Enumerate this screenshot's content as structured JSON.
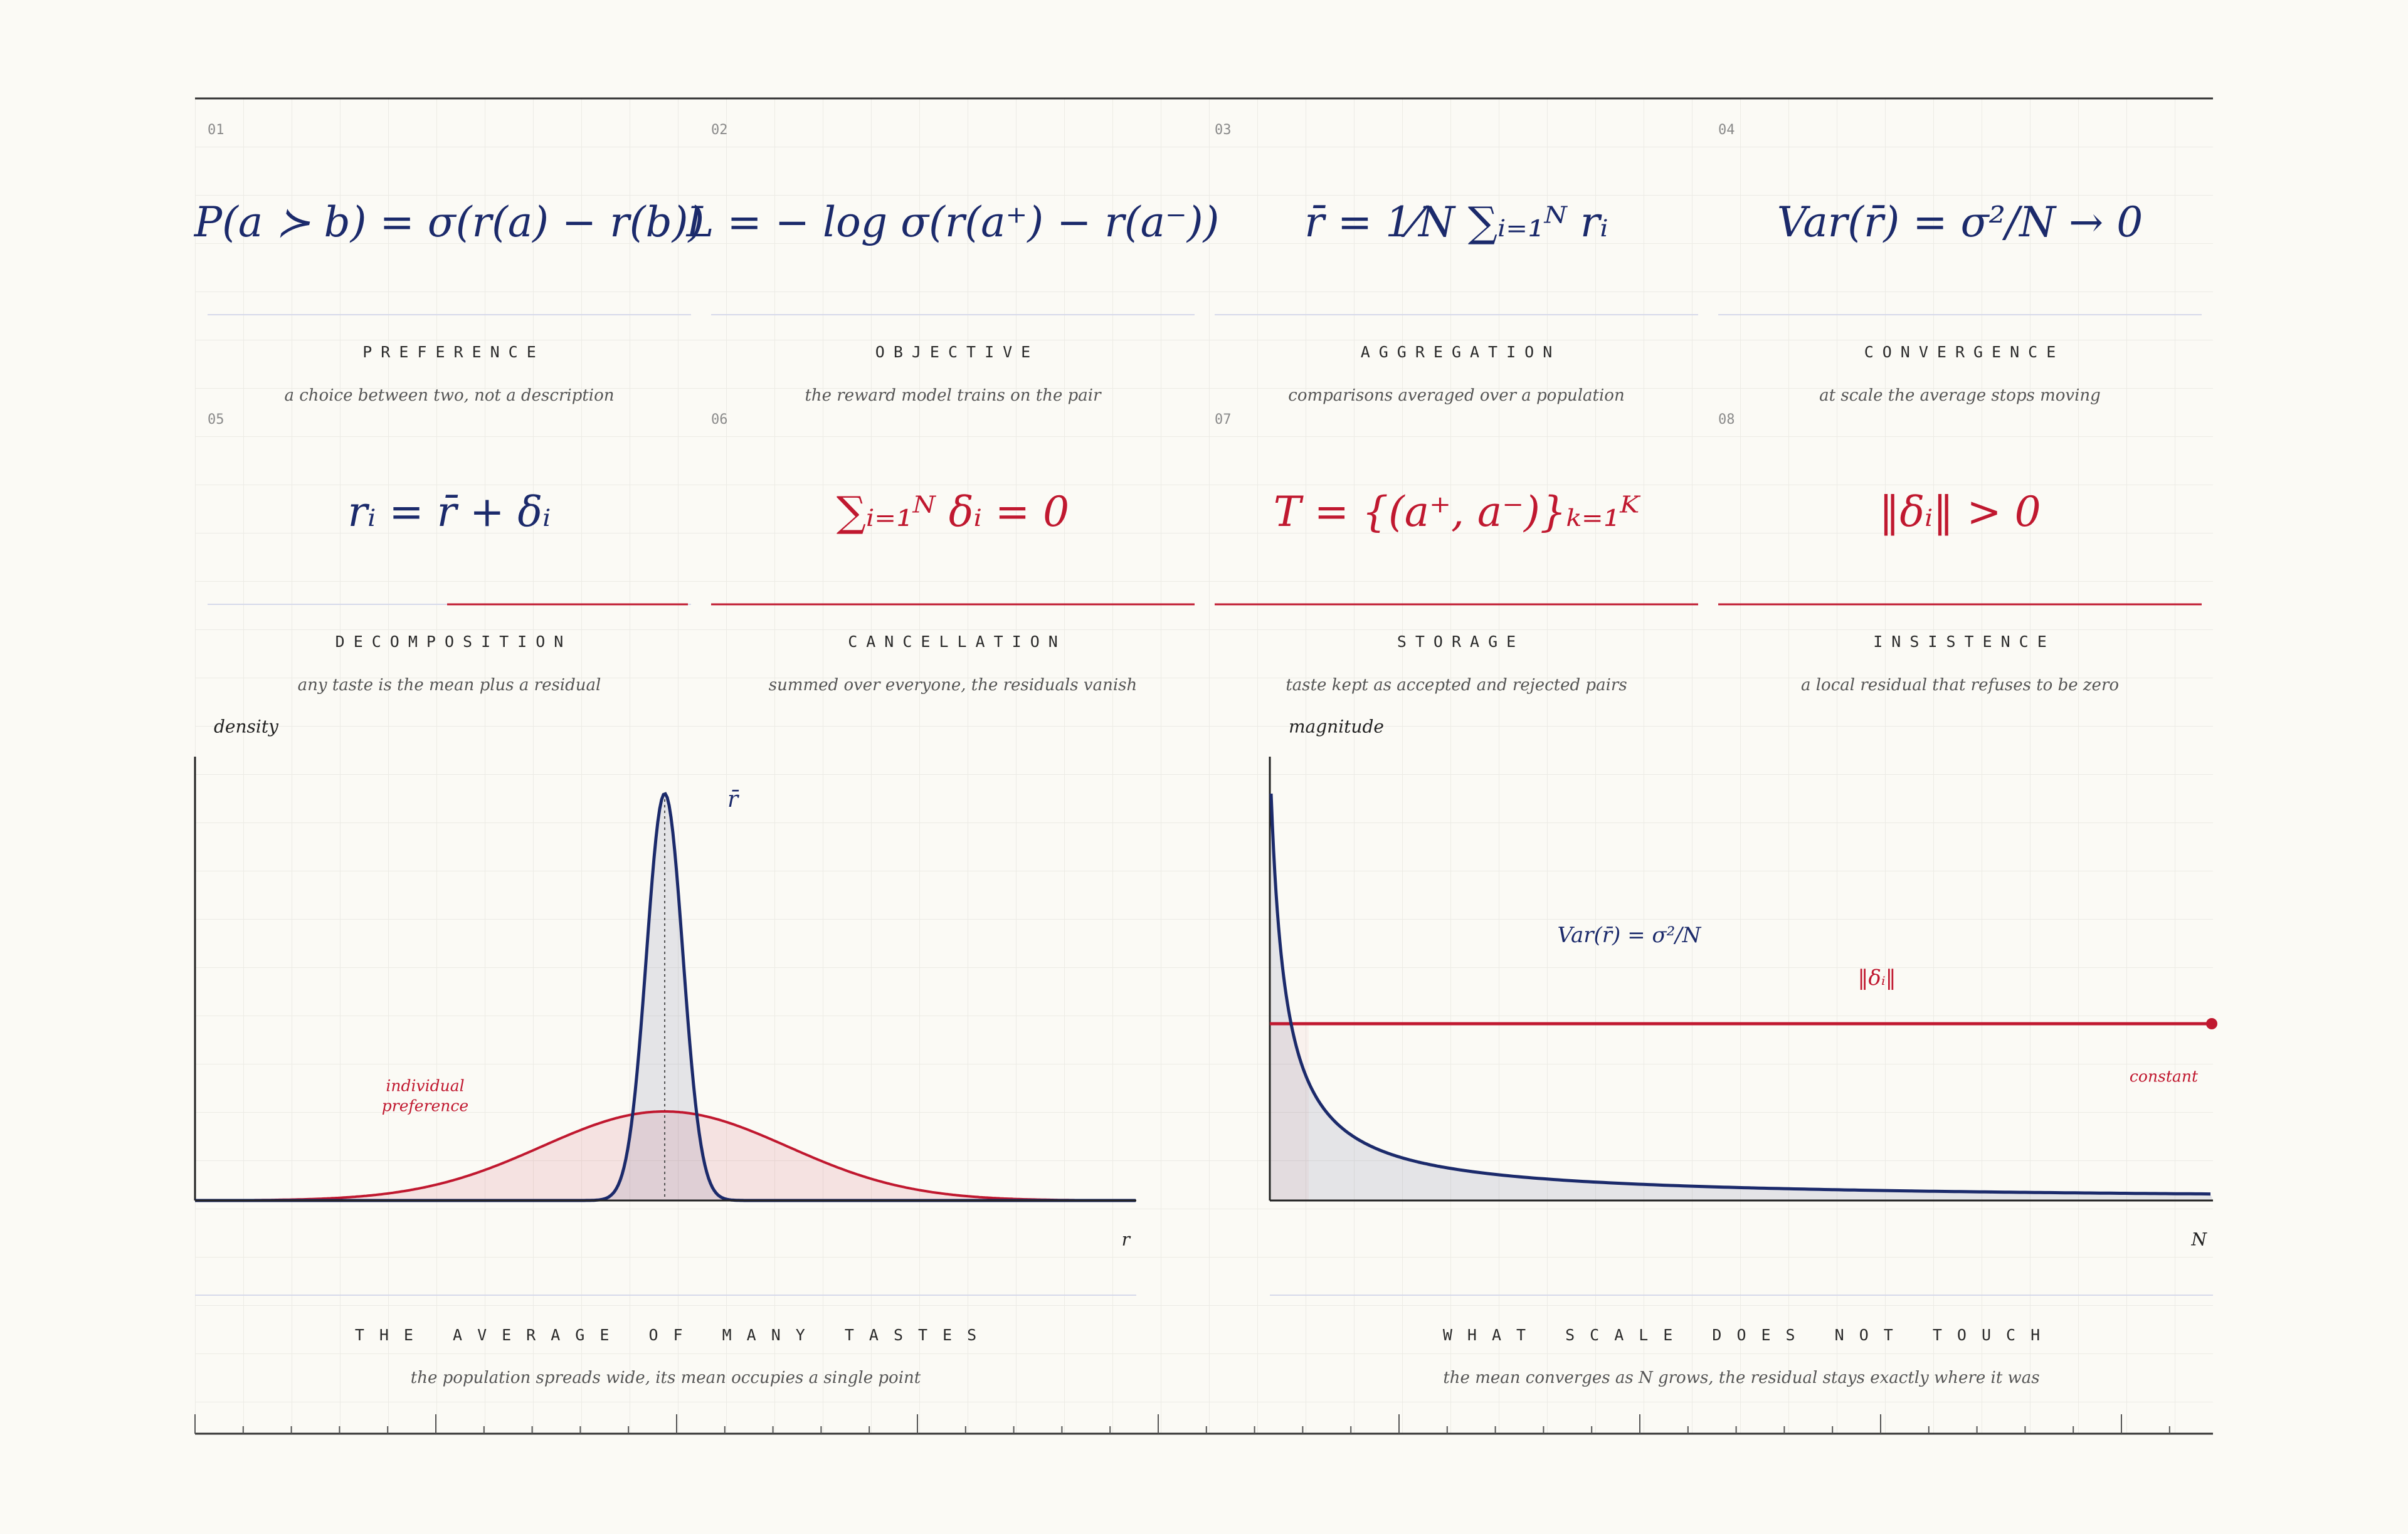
{
  "cards": [
    {
      "number": "01",
      "formula": "P(a ≻ b) = σ(r(a) − r(b))",
      "title": "PREFERENCE",
      "description": "a choice between two, not a description"
    },
    {
      "number": "02",
      "formula": "L = − log σ(r(a⁺) − r(a⁻))",
      "title": "OBJECTIVE",
      "description": "the reward model trains on the pair"
    },
    {
      "number": "03",
      "formula": "r̄ = 1⁄N ∑ᵢ₌₁ᴺ rᵢ",
      "title": "AGGREGATION",
      "description": "comparisons averaged over a population"
    },
    {
      "number": "04",
      "formula": "Var(r̄) = σ²/N → 0",
      "title": "CONVERGENCE",
      "description": "at scale the average stops moving"
    },
    {
      "number": "05",
      "formula": "rᵢ = r̄ + δᵢ",
      "title": "DECOMPOSITION",
      "description": "any taste is the mean plus a residual"
    },
    {
      "number": "06",
      "formula": "∑ᵢ₌₁ᴺ δᵢ = 0",
      "title": "CANCELLATION",
      "description": "summed over everyone, the residuals vanish"
    },
    {
      "number": "07",
      "formula": "T = {(a⁺, a⁻)}ₖ₌₁ᴷ",
      "title": "STORAGE",
      "description": "taste kept as accepted and rejected pairs"
    },
    {
      "number": "08",
      "formula": "‖δᵢ‖ > 0",
      "title": "INSISTENCE",
      "description": "a local residual that refuses to be zero"
    }
  ],
  "panels": [
    {
      "y_label": "density",
      "x_label": "r",
      "mean_label": "r̄",
      "curve_label": [
        "individual",
        "preference"
      ],
      "title": "THE AVERAGE OF MANY TASTES",
      "description": "the population spreads wide, its mean occupies a single point"
    },
    {
      "y_label": "magnitude",
      "x_label": "N",
      "variance_label": "Var(r̄) = σ²/N",
      "residual_label": "‖δᵢ‖",
      "constant_label": "constant",
      "title": "WHAT SCALE DOES NOT TOUCH",
      "description": "the mean converges as N grows, the residual stays exactly where it was"
    }
  ]
}
